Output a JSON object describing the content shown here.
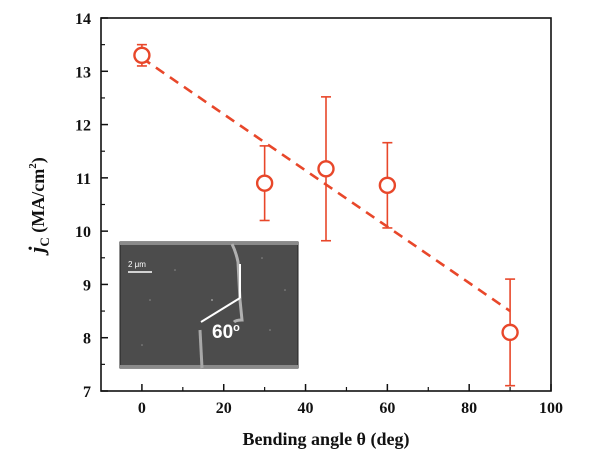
{
  "chart_data": {
    "type": "scatter",
    "xlabel": "Bending angle θ (deg)",
    "ylabel": {
      "symbol": "j",
      "subscript": "C",
      "unit_open": " (MA/cm",
      "unit_power": "2",
      "unit_close": ")"
    },
    "xlim": [
      -10,
      100
    ],
    "ylim": [
      7,
      14
    ],
    "xticks": [
      0,
      20,
      40,
      60,
      80,
      100
    ],
    "yticks": [
      7,
      8,
      9,
      10,
      11,
      12,
      13,
      14
    ],
    "grid": false,
    "legend": "none",
    "series": [
      {
        "x": [
          0,
          30,
          45,
          60,
          90
        ],
        "y": [
          13.3,
          10.9,
          11.17,
          10.86,
          8.1
        ],
        "err_low": [
          0.2,
          0.7,
          1.35,
          0.8,
          1.0
        ],
        "err_high": [
          0.2,
          0.7,
          1.35,
          0.8,
          1.0
        ],
        "marker": "open-circle",
        "color": "#e8472a"
      }
    ],
    "fit_line": {
      "x": [
        0,
        90
      ],
      "y": [
        13.25,
        8.5
      ],
      "style": "dashed",
      "color": "#e8472a"
    },
    "inset": {
      "scale_label": "2 μm",
      "angle_label": "60",
      "angle_unit": "o"
    }
  }
}
